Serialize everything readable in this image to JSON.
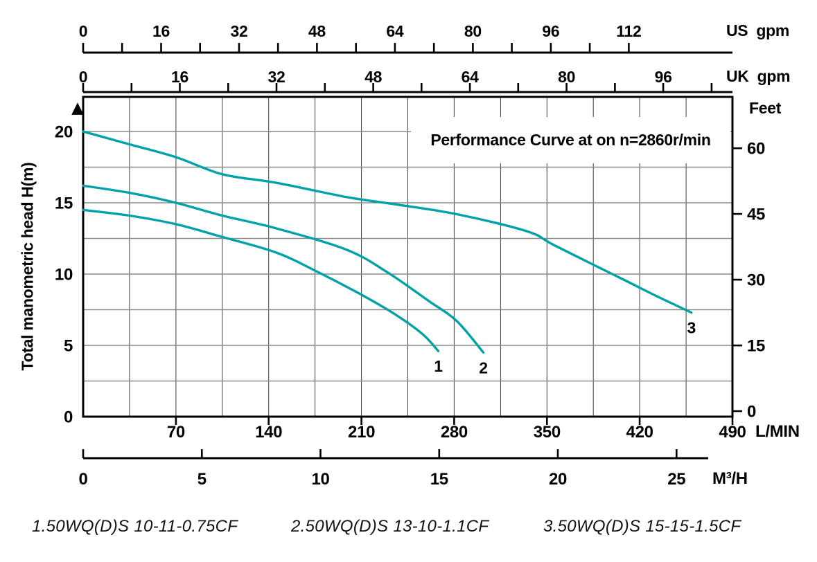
{
  "chart_data": {
    "type": "line",
    "title": "Performance Curve at on n=2860r/min",
    "curve_color": "#00a2a8",
    "grid": {
      "x_step_l_min": 35,
      "y_step_m": 2.5,
      "on": true
    },
    "y_axis": {
      "label": "Total manometric head H(m)",
      "unit": "m",
      "ticks": [
        0,
        5,
        10,
        15,
        20
      ],
      "range": [
        0,
        22.4
      ]
    },
    "y2_axis": {
      "label": "Feet",
      "ticks": [
        0,
        15,
        30,
        45,
        60
      ]
    },
    "x_axis_us": {
      "region": "US",
      "unit": "gpm",
      "major_ticks": [
        0,
        16,
        32,
        48,
        64,
        80,
        96,
        112
      ],
      "minor_step": 8,
      "minor_max": 112
    },
    "x_axis_uk": {
      "region": "UK",
      "unit": "gpm",
      "major_ticks": [
        0,
        16,
        32,
        48,
        64,
        80,
        96
      ],
      "minor_step": 8,
      "minor_max": 104
    },
    "x_axis_lmin": {
      "unit": "L/MIN",
      "ticks": [
        70,
        140,
        210,
        280,
        350,
        420,
        490
      ],
      "range": [
        0,
        490
      ]
    },
    "x_axis_m3h": {
      "unit": "M³/H",
      "ticks": [
        0,
        5,
        10,
        15,
        20,
        25
      ]
    },
    "series": [
      {
        "index": "1",
        "name": "1.50WQ(D)S 10-11-0.75CF",
        "points_l_min_vs_head_m": [
          [
            0,
            14.5
          ],
          [
            35,
            14.1
          ],
          [
            70,
            13.5
          ],
          [
            105,
            12.6
          ],
          [
            146,
            11.5
          ],
          [
            178,
            10.1
          ],
          [
            209,
            8.6
          ],
          [
            235,
            7.2
          ],
          [
            256,
            5.8
          ],
          [
            268,
            4.6
          ]
        ]
      },
      {
        "index": "2",
        "name": "2.50WQ(D)S 13-10-1.1CF",
        "points_l_min_vs_head_m": [
          [
            0,
            16.2
          ],
          [
            35,
            15.7
          ],
          [
            70,
            15.0
          ],
          [
            105,
            14.1
          ],
          [
            146,
            13.2
          ],
          [
            199,
            11.7
          ],
          [
            230,
            10.1
          ],
          [
            261,
            8.1
          ],
          [
            282,
            6.7
          ],
          [
            302,
            4.5
          ]
        ]
      },
      {
        "index": "3",
        "name": "3.50WQ(D)S 15-15-1.5CF",
        "points_l_min_vs_head_m": [
          [
            0,
            20.0
          ],
          [
            35,
            19.1
          ],
          [
            70,
            18.2
          ],
          [
            105,
            17.0
          ],
          [
            146,
            16.4
          ],
          [
            199,
            15.4
          ],
          [
            235,
            14.9
          ],
          [
            282,
            14.2
          ],
          [
            335,
            13.0
          ],
          [
            356,
            12.0
          ],
          [
            408,
            9.6
          ],
          [
            434,
            8.4
          ],
          [
            459,
            7.3
          ]
        ]
      }
    ]
  },
  "icons": {
    "up_triangle": "▲"
  }
}
